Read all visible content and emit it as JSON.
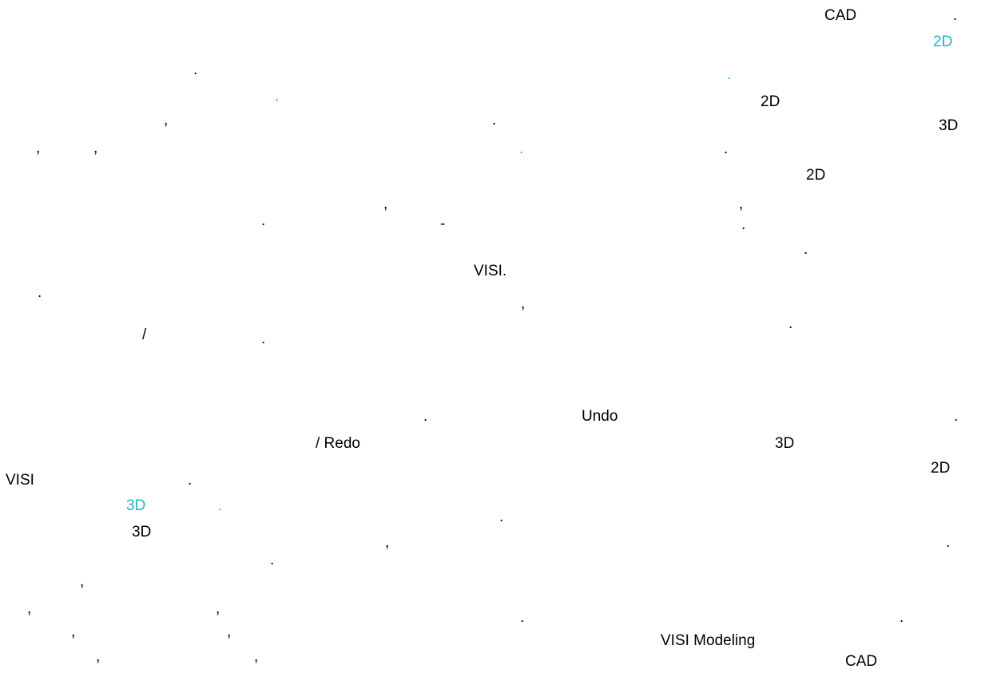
{
  "colors": {
    "text": "#000000",
    "highlight": "#1fb5c4",
    "background": "#ffffff"
  },
  "paragraph_1": {
    "frags": [
      {
        "text": "CAD",
        "hl": false
      },
      {
        "text": ".",
        "hl": false
      },
      {
        "text": "2D",
        "hl": true
      },
      {
        "text": ".",
        "hl": false
      },
      {
        "text": ".",
        "hl": true
      },
      {
        "text": ".",
        "hl": true
      },
      {
        "text": "2D",
        "hl": false
      },
      {
        "text": ",",
        "hl": false
      },
      {
        "text": ".",
        "hl": false
      },
      {
        "text": "3D",
        "hl": false
      },
      {
        "text": ",",
        "hl": false
      },
      {
        "text": ",",
        "hl": false
      },
      {
        "text": ".",
        "hl": true
      },
      {
        "text": ".",
        "hl": false
      },
      {
        "text": "2D",
        "hl": false
      },
      {
        "text": ",",
        "hl": false
      },
      {
        "text": ",",
        "hl": false
      },
      {
        "text": ".",
        "hl": false
      },
      {
        "text": "-",
        "hl": false
      },
      {
        "text": ".",
        "hl": false
      },
      {
        "text": ".",
        "hl": false
      },
      {
        "text": "VISI.",
        "hl": false
      },
      {
        "text": ".",
        "hl": false
      },
      {
        "text": ",",
        "hl": false
      },
      {
        "text": ".",
        "hl": false
      },
      {
        "text": "/",
        "hl": false
      },
      {
        "text": ".",
        "hl": false
      }
    ]
  },
  "paragraph_2": {
    "frags": [
      {
        "text": ".",
        "hl": false
      },
      {
        "text": "Undo",
        "hl": false
      },
      {
        "text": ".",
        "hl": false
      },
      {
        "text": "/ Redo",
        "hl": false
      },
      {
        "text": "3D",
        "hl": false
      },
      {
        "text": "2D",
        "hl": false
      },
      {
        "text": "VISI",
        "hl": false
      },
      {
        "text": ".",
        "hl": false
      },
      {
        "text": "3D",
        "hl": true
      },
      {
        "text": ".",
        "hl": true
      },
      {
        "text": ".",
        "hl": false
      },
      {
        "text": "3D",
        "hl": false
      },
      {
        "text": ",",
        "hl": false
      },
      {
        "text": ".",
        "hl": false
      },
      {
        "text": ".",
        "hl": false
      },
      {
        "text": ",",
        "hl": false
      },
      {
        "text": ",",
        "hl": false
      },
      {
        "text": ",",
        "hl": false
      },
      {
        "text": ".",
        "hl": false
      },
      {
        "text": ".",
        "hl": false
      },
      {
        "text": ",",
        "hl": false
      },
      {
        "text": ",",
        "hl": false
      },
      {
        "text": "VISI Modeling",
        "hl": false
      },
      {
        "text": ",",
        "hl": false
      },
      {
        "text": ",",
        "hl": false
      },
      {
        "text": "CAD",
        "hl": false
      }
    ]
  }
}
